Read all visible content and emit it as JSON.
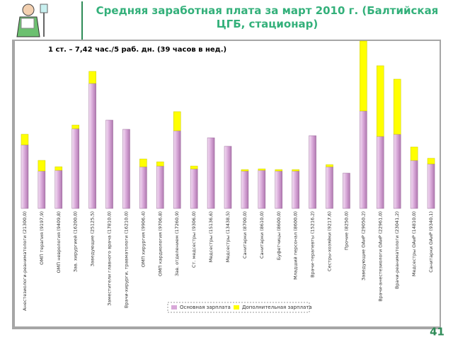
{
  "chart_data": {
    "type": "stacked-bar",
    "title": "Средняя заработная плата за март 2010 г. (Балтийская ЦГБ, стационар)",
    "annotation": "1 ст. – 7,42 час./5 раб. дн. (39 часов в нед.)",
    "categories": [
      "Анестезиологи-реаниматологи (21300,0)",
      "ОМП терапия (9197,9)",
      "ОМП неврология (9409,8)",
      "Зав. хирургией (16200,0)",
      "Заведующие (25125,5)",
      "Заместители главного врача (17810,0)",
      "Врачи-хирурги, травматологи (16210,0)",
      "ОМП хирургия (9906,4)",
      "ОМП кардиология (9706,8)",
      "Зав. отделением (17260,9)",
      "Ст. медсестры (9306,0)",
      "Медсестры (15136,6)",
      "Медсестры (13438,5)",
      "Санитарки (8700,0)",
      "Санитарки (8610,0)",
      "Буфетчицы (8600,0)",
      "Младший персонал (8600,0)",
      "Врачи-терапевты (15216,2)",
      "Сестры-хозяйки (9217,6)",
      "Прочие (8250,0)",
      "Заведующие ОАиР (29050,2)",
      "Врачи-анестезиологи ОАиР (22961,0)",
      "Врачи-реаниматологи (23041,2)",
      "Медсестры ОАиР (14810,0)",
      "Санитарки ОАиР (9340,1)"
    ],
    "series": [
      {
        "name": "Основная зарплата",
        "color": "#d8a8d8",
        "values": [
          90,
          53,
          54,
          113,
          177,
          125,
          112,
          59,
          60,
          110,
          56,
          100,
          88,
          53,
          54,
          53,
          53,
          103,
          59,
          50,
          138,
          102,
          105,
          68,
          63
        ]
      },
      {
        "name": "Дополнительная зарплата",
        "color": "#ffff00",
        "values": [
          15,
          15,
          5,
          5,
          17,
          0,
          0,
          11,
          6,
          27,
          4,
          0,
          0,
          2,
          2,
          2,
          2,
          0,
          3,
          0,
          99,
          100,
          78,
          19,
          8
        ]
      }
    ],
    "ylim": [
      0,
      237
    ]
  },
  "page_number": "41"
}
